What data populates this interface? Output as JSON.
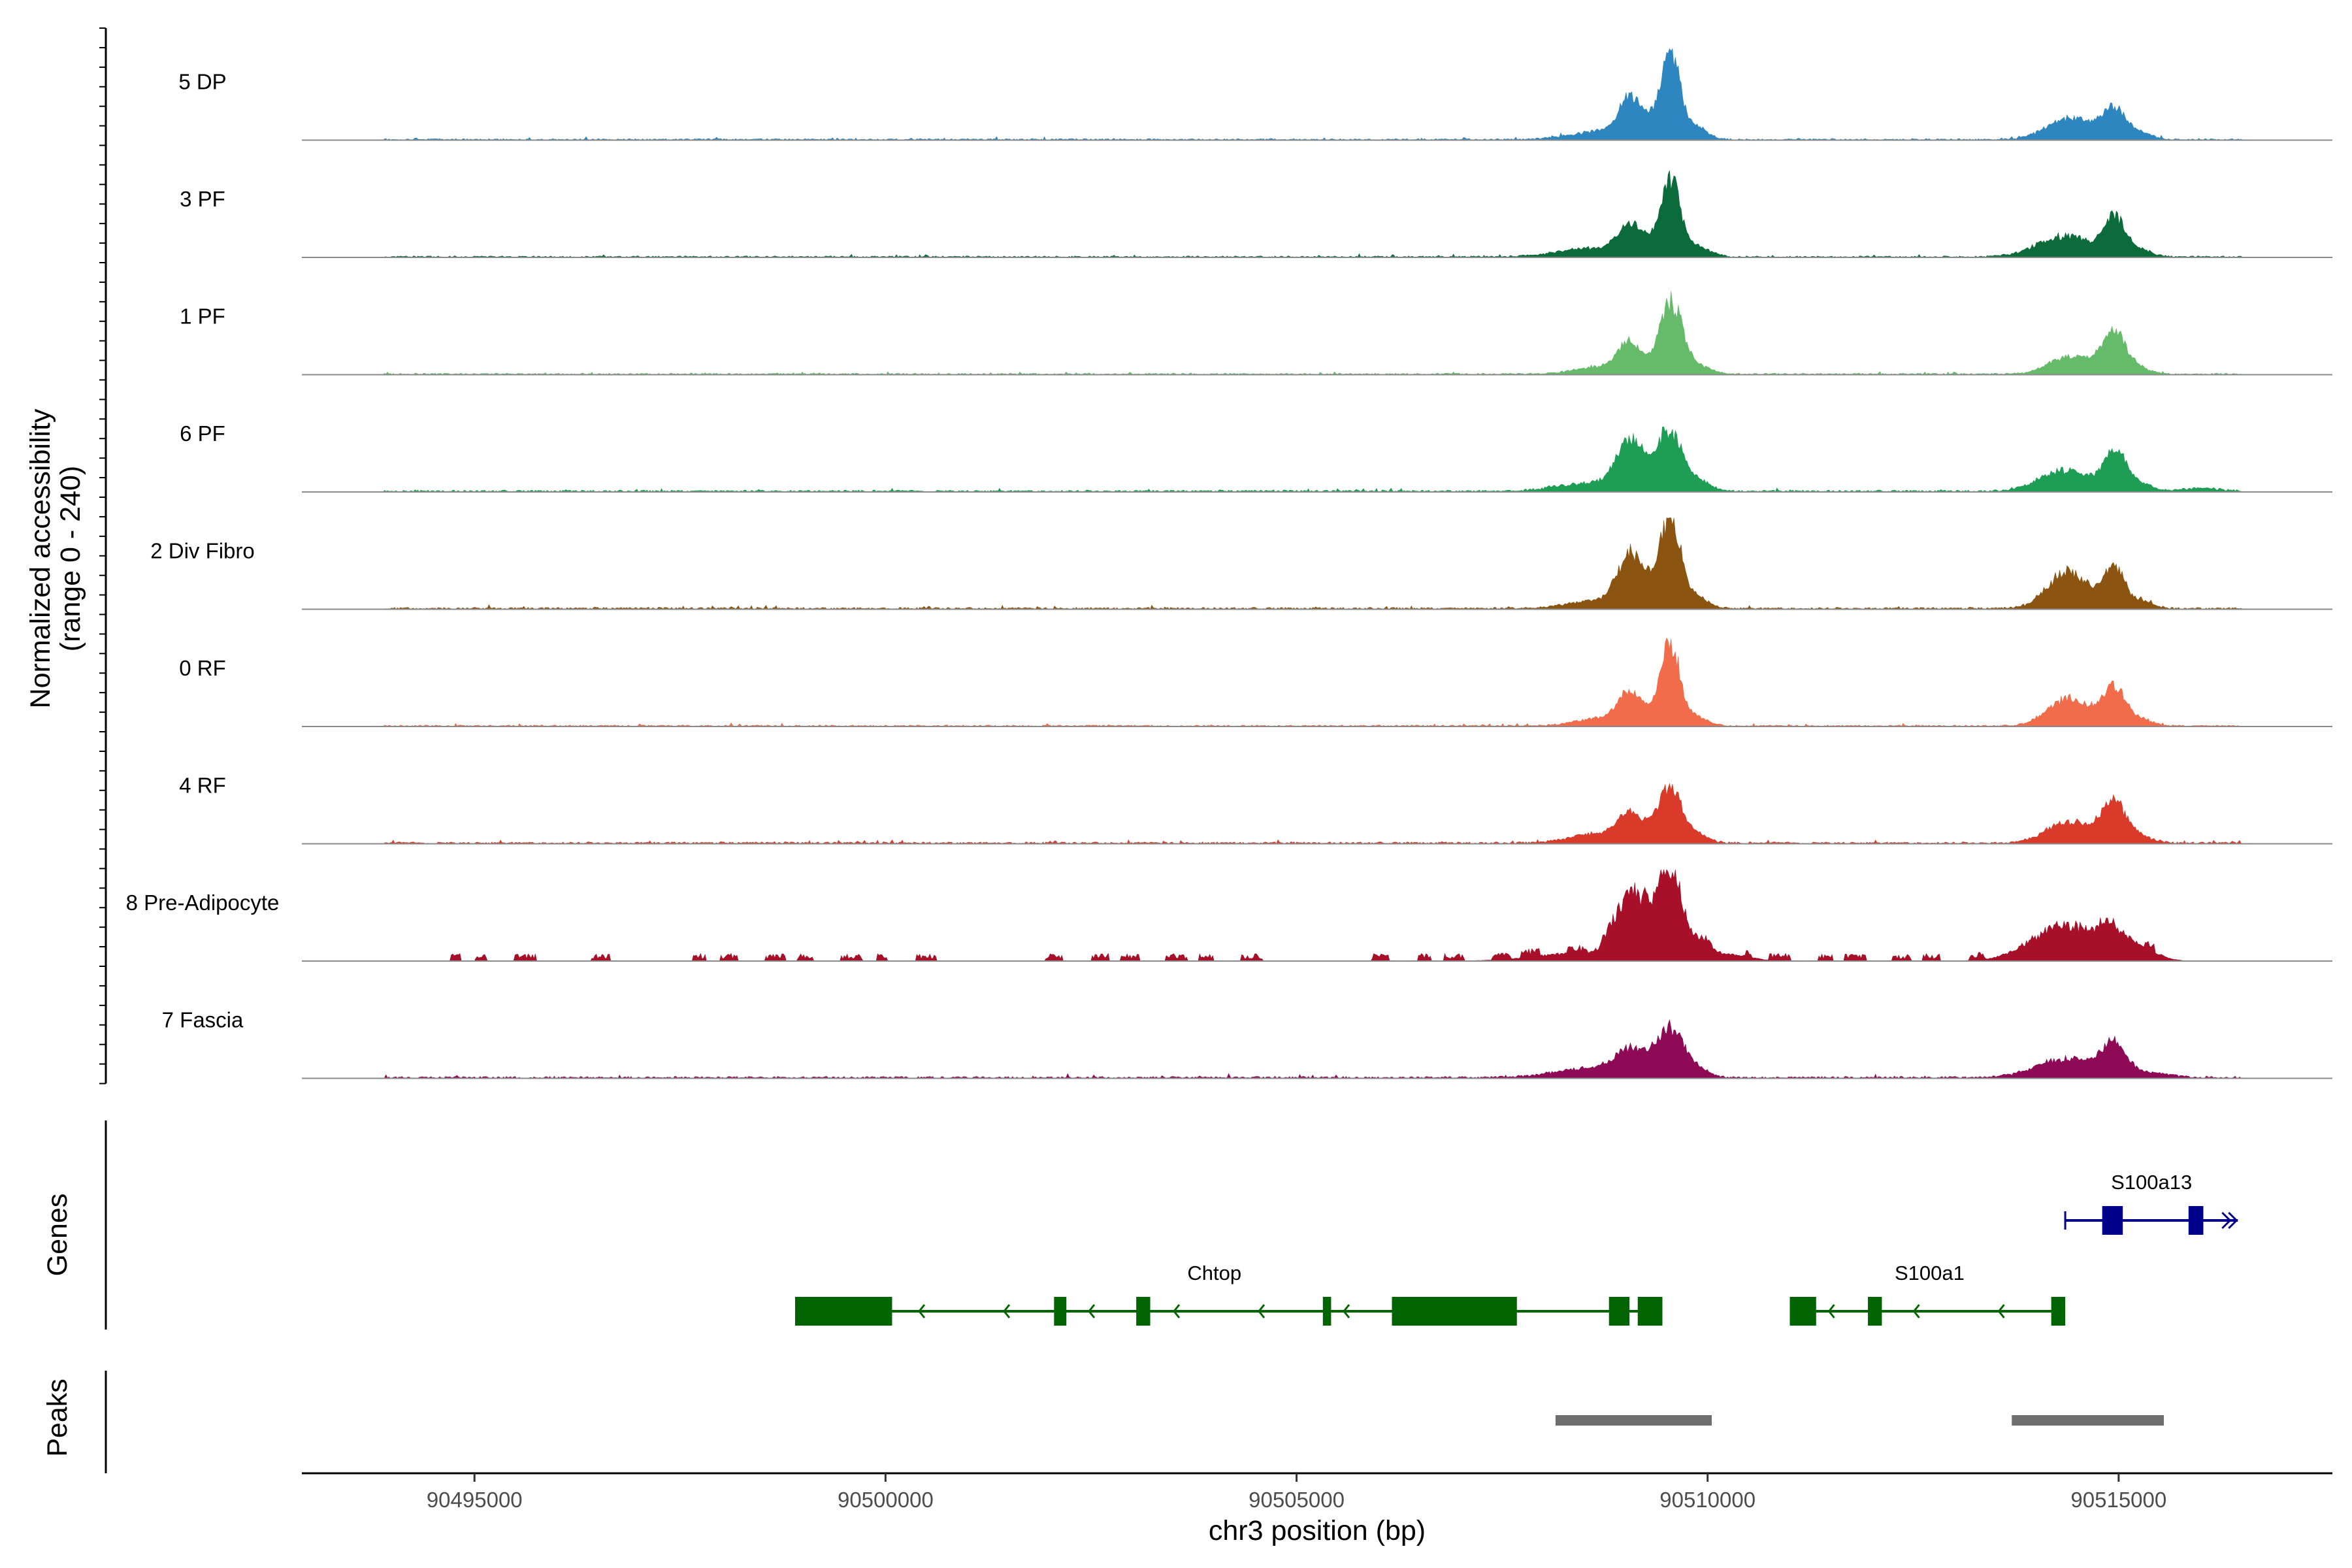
{
  "chart_data": {
    "type": "area",
    "title": "",
    "xlabel": "chr3 position (bp)",
    "ylabel_line1": "Normalized accessibility",
    "ylabel_line2": "(range 0 - 240)",
    "ylim": [
      0,
      240
    ],
    "xlim": [
      90492900,
      90517600
    ],
    "x_ticks": [
      90495000,
      90500000,
      90505000,
      90510000,
      90515000
    ],
    "x_tick_labels": [
      "90495000",
      "90500000",
      "90505000",
      "90510000",
      "90515000"
    ],
    "tracks": [
      {
        "name": "5 DP",
        "color": "#2E86C1",
        "noise_start": 90493900,
        "noise_end": 90516500,
        "noise_max": 4,
        "spiky": false,
        "peaks": [
          [
            90508700,
            350,
            22
          ],
          [
            90509050,
            130,
            95
          ],
          [
            90509350,
            160,
            42
          ],
          [
            90509550,
            110,
            215
          ],
          [
            90509850,
            140,
            35
          ],
          [
            90514350,
            250,
            50
          ],
          [
            90514700,
            200,
            20
          ],
          [
            90514950,
            130,
            75
          ],
          [
            90515250,
            150,
            18
          ]
        ]
      },
      {
        "name": "3 PF",
        "color": "#0B6B3A",
        "noise_start": 90493900,
        "noise_end": 90516500,
        "noise_max": 4,
        "spiky": false,
        "peaks": [
          [
            90508600,
            400,
            22
          ],
          [
            90509050,
            140,
            72
          ],
          [
            90509350,
            160,
            32
          ],
          [
            90509550,
            110,
            190
          ],
          [
            90509850,
            160,
            30
          ],
          [
            90514350,
            330,
            55
          ],
          [
            90514950,
            130,
            95
          ],
          [
            90515250,
            150,
            18
          ]
        ]
      },
      {
        "name": "1 PF",
        "color": "#66BB6A",
        "noise_start": 90493900,
        "noise_end": 90516500,
        "noise_max": 4,
        "spiky": false,
        "peaks": [
          [
            90508700,
            300,
            20
          ],
          [
            90509050,
            140,
            75
          ],
          [
            90509550,
            140,
            190
          ],
          [
            90509900,
            140,
            20
          ],
          [
            90514350,
            230,
            40
          ],
          [
            90514700,
            200,
            20
          ],
          [
            90514950,
            140,
            105
          ],
          [
            90515250,
            150,
            14
          ]
        ]
      },
      {
        "name": "6 PF",
        "color": "#1E9E54",
        "noise_start": 90493900,
        "noise_end": 90516500,
        "noise_max": 5,
        "spiky": false,
        "peaks": [
          [
            90508600,
            400,
            22
          ],
          [
            90509050,
            160,
            115
          ],
          [
            90509350,
            160,
            40
          ],
          [
            90509550,
            130,
            140
          ],
          [
            90509850,
            150,
            35
          ],
          [
            90514350,
            300,
            55
          ],
          [
            90514950,
            130,
            110
          ],
          [
            90515250,
            150,
            20
          ],
          [
            90516000,
            220,
            8
          ]
        ]
      },
      {
        "name": "2 Div Fibro",
        "color": "#8B5411",
        "noise_start": 90493900,
        "noise_end": 90516500,
        "noise_max": 5,
        "spiky": false,
        "peaks": [
          [
            90508650,
            350,
            20
          ],
          [
            90509050,
            150,
            130
          ],
          [
            90509350,
            160,
            40
          ],
          [
            90509550,
            120,
            225
          ],
          [
            90509850,
            150,
            30
          ],
          [
            90514350,
            230,
            90
          ],
          [
            90514700,
            200,
            20
          ],
          [
            90514950,
            120,
            95
          ],
          [
            90515250,
            150,
            20
          ]
        ]
      },
      {
        "name": "0 RF",
        "color": "#F26B4A",
        "noise_start": 90493900,
        "noise_end": 90516500,
        "noise_max": 4,
        "spiky": false,
        "peaks": [
          [
            90508700,
            300,
            20
          ],
          [
            90509050,
            140,
            80
          ],
          [
            90509350,
            150,
            28
          ],
          [
            90509550,
            110,
            205
          ],
          [
            90509850,
            140,
            25
          ],
          [
            90514350,
            230,
            68
          ],
          [
            90514700,
            180,
            20
          ],
          [
            90514950,
            130,
            95
          ],
          [
            90515250,
            150,
            18
          ]
        ]
      },
      {
        "name": "4 RF",
        "color": "#D93A2A",
        "noise_start": 90493900,
        "noise_end": 90516500,
        "noise_max": 5,
        "spiky": false,
        "peaks": [
          [
            90508700,
            350,
            25
          ],
          [
            90509050,
            140,
            62
          ],
          [
            90509350,
            150,
            30
          ],
          [
            90509550,
            130,
            130
          ],
          [
            90509850,
            140,
            25
          ],
          [
            90514350,
            250,
            50
          ],
          [
            90514700,
            200,
            20
          ],
          [
            90514950,
            140,
            98
          ],
          [
            90515250,
            150,
            18
          ]
        ]
      },
      {
        "name": "8 Pre-Adipocyte",
        "color": "#A8102A",
        "noise_start": 90494700,
        "noise_end": 90515600,
        "noise_max": 9,
        "spiky": true,
        "peaks": [
          [
            90508400,
            500,
            20
          ],
          [
            90509050,
            180,
            150
          ],
          [
            90509300,
            200,
            50
          ],
          [
            90509550,
            140,
            225
          ],
          [
            90509900,
            160,
            45
          ],
          [
            90510350,
            200,
            15
          ],
          [
            90514350,
            400,
            95
          ],
          [
            90514950,
            180,
            50
          ],
          [
            90515300,
            200,
            25
          ]
        ]
      },
      {
        "name": "7 Fascia",
        "color": "#8E0A57",
        "noise_start": 90493900,
        "noise_end": 90516500,
        "noise_max": 5,
        "spiky": false,
        "peaks": [
          [
            90508500,
            400,
            22
          ],
          [
            90509100,
            220,
            70
          ],
          [
            90509550,
            150,
            120
          ],
          [
            90509850,
            150,
            25
          ],
          [
            90514350,
            350,
            50
          ],
          [
            90514950,
            150,
            85
          ],
          [
            90515400,
            220,
            12
          ]
        ]
      }
    ],
    "genes_label": "Genes",
    "genes": [
      {
        "name": "S100a13",
        "color": "#00008B",
        "strand": "+",
        "row": 0,
        "start": 90514350,
        "end": 90516450,
        "exons": [
          [
            90514800,
            90515050
          ],
          [
            90515850,
            90516030
          ]
        ]
      },
      {
        "name": "Chtop",
        "color": "#006400",
        "strand": "-",
        "row": 1,
        "start": 90498900,
        "end": 90509450,
        "exons": [
          [
            90498900,
            90500080
          ],
          [
            90502050,
            90502200
          ],
          [
            90503050,
            90503220
          ],
          [
            90505320,
            90505420
          ],
          [
            90506160,
            90507680
          ],
          [
            90508800,
            90509050
          ],
          [
            90509150,
            90509450
          ]
        ]
      },
      {
        "name": "S100a1",
        "color": "#006400",
        "strand": "-",
        "row": 1,
        "start": 90511000,
        "end": 90514350,
        "exons": [
          [
            90511000,
            90511320
          ],
          [
            90511950,
            90512120
          ],
          [
            90514180,
            90514350
          ]
        ]
      }
    ],
    "peaks_label": "Peaks",
    "peak_regions": [
      [
        90508150,
        90510050
      ],
      [
        90513700,
        90515550
      ]
    ],
    "peak_color": "#6E6E6E"
  }
}
